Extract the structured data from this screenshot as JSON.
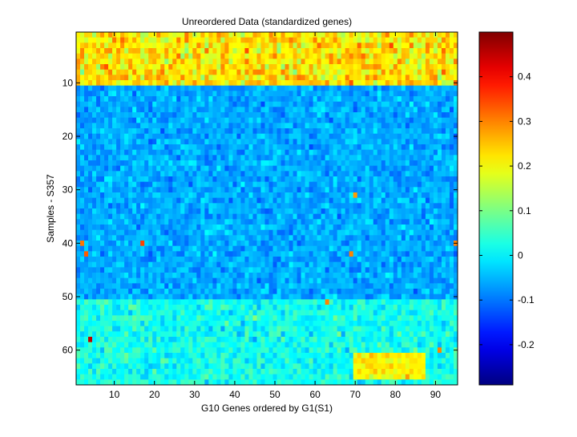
{
  "chart_data": {
    "type": "heatmap",
    "title": "Unreordered Data (standardized genes)",
    "xlabel": "G10 Genes ordered by G1(S1)",
    "ylabel": "Samples - S357",
    "n_cols": 95,
    "n_rows": 66,
    "xlim": [
      0.5,
      95.5
    ],
    "ylim": [
      0.5,
      66.5
    ],
    "y_direction": "reversed",
    "x_ticks": [
      10,
      20,
      30,
      40,
      50,
      60,
      70,
      80,
      90
    ],
    "y_ticks": [
      10,
      20,
      30,
      40,
      50,
      60
    ],
    "colormap": "jet",
    "clim": [
      -0.29,
      0.5
    ],
    "colorbar_ticks": [
      -0.2,
      -0.1,
      0,
      0.1,
      0.2,
      0.3,
      0.4
    ],
    "colorbar_tick_labels": [
      "-0.2",
      "-0.1",
      "0",
      "0.1",
      "0.2",
      "0.3",
      "0.4"
    ],
    "row_bands": [
      {
        "rows": [
          1,
          10
        ],
        "mean": 0.22,
        "spread": 0.09
      },
      {
        "rows": [
          11,
          50
        ],
        "mean": -0.06,
        "spread": 0.05
      },
      {
        "rows": [
          51,
          66
        ],
        "mean": 0.02,
        "spread": 0.06
      }
    ],
    "notable_cells": [
      {
        "row": 40,
        "col": 2,
        "value": 0.31
      },
      {
        "row": 42,
        "col": 3,
        "value": 0.33
      },
      {
        "row": 40,
        "col": 17,
        "value": 0.35
      },
      {
        "row": 58,
        "col": 4,
        "value": 0.45
      },
      {
        "row": 51,
        "col": 63,
        "value": 0.3
      },
      {
        "row": 42,
        "col": 69,
        "value": 0.3
      },
      {
        "row": 31,
        "col": 70,
        "value": 0.28
      },
      {
        "row": 60,
        "col": 91,
        "value": 0.3
      },
      {
        "row": 40,
        "col": 95,
        "value": 0.3
      }
    ],
    "hotspot_block": {
      "rows": [
        61,
        65
      ],
      "cols": [
        70,
        87
      ],
      "mean": 0.21
    }
  }
}
